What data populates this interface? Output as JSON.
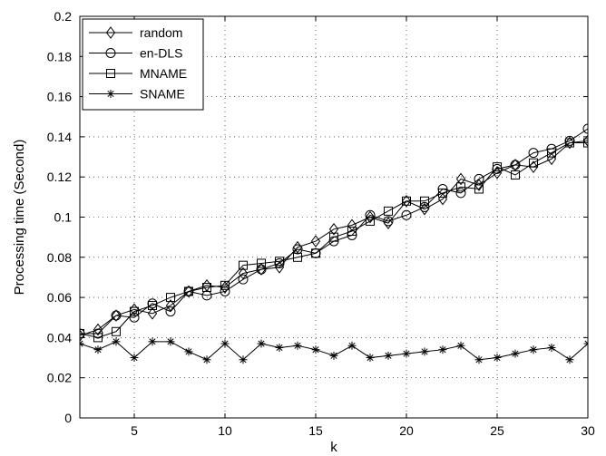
{
  "chart_data": {
    "type": "line",
    "title": "",
    "xlabel": "k",
    "ylabel": "Processing time (Second)",
    "xlim": [
      2,
      30
    ],
    "ylim": [
      0,
      0.2
    ],
    "xticks": [
      5,
      10,
      15,
      20,
      25,
      30
    ],
    "yticks": [
      0,
      0.02,
      0.04,
      0.06,
      0.08,
      0.1,
      0.12,
      0.14,
      0.16,
      0.18,
      0.2
    ],
    "grid": true,
    "legend_position": "top-left",
    "x": [
      2,
      3,
      4,
      5,
      6,
      7,
      8,
      9,
      10,
      11,
      12,
      13,
      14,
      15,
      16,
      17,
      18,
      19,
      20,
      21,
      22,
      23,
      24,
      25,
      26,
      27,
      28,
      29,
      30
    ],
    "series": [
      {
        "name": "random",
        "marker": "diamond",
        "values": [
          0.041,
          0.044,
          0.051,
          0.054,
          0.052,
          0.056,
          0.063,
          0.066,
          0.065,
          0.072,
          0.074,
          0.075,
          0.085,
          0.088,
          0.094,
          0.096,
          0.1,
          0.097,
          0.108,
          0.104,
          0.109,
          0.119,
          0.116,
          0.122,
          0.126,
          0.125,
          0.129,
          0.137,
          0.138
        ]
      },
      {
        "name": "en-DLS",
        "marker": "circle",
        "values": [
          0.042,
          0.042,
          0.051,
          0.05,
          0.057,
          0.053,
          0.063,
          0.061,
          0.063,
          0.069,
          0.074,
          0.077,
          0.084,
          0.082,
          0.088,
          0.091,
          0.101,
          0.098,
          0.101,
          0.105,
          0.114,
          0.112,
          0.119,
          0.124,
          0.126,
          0.132,
          0.134,
          0.138,
          0.144
        ]
      },
      {
        "name": "MNAME",
        "marker": "square",
        "values": [
          0.042,
          0.04,
          0.043,
          0.053,
          0.056,
          0.06,
          0.063,
          0.065,
          0.066,
          0.076,
          0.077,
          0.078,
          0.08,
          0.082,
          0.09,
          0.093,
          0.098,
          0.103,
          0.108,
          0.108,
          0.112,
          0.115,
          0.114,
          0.125,
          0.121,
          0.127,
          0.132,
          0.137,
          0.137
        ]
      },
      {
        "name": "SNAME",
        "marker": "star",
        "values": [
          0.037,
          0.034,
          0.038,
          0.03,
          0.038,
          0.038,
          0.033,
          0.029,
          0.037,
          0.029,
          0.037,
          0.035,
          0.036,
          0.034,
          0.031,
          0.036,
          0.03,
          0.031,
          0.032,
          0.033,
          0.034,
          0.036,
          0.029,
          0.03,
          0.032,
          0.034,
          0.035,
          0.029,
          0.037
        ]
      }
    ]
  }
}
